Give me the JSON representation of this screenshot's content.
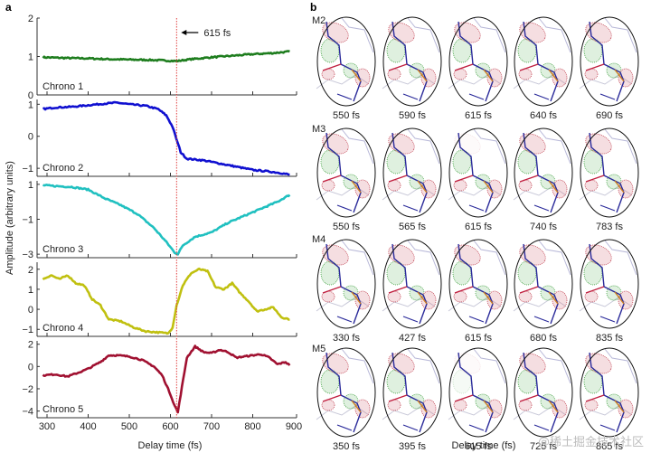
{
  "chart_data": [
    {
      "type": "line",
      "panel_label": "a",
      "xlabel": "Delay time (fs)",
      "ylabel": "Amplitude (arbitrary units)",
      "xlim": [
        280,
        900
      ],
      "xticks": [
        300,
        400,
        500,
        600,
        700,
        800,
        900
      ],
      "annotation": {
        "text": "615 fs",
        "x": 615,
        "style": "red-dotted-vertical-line-with-arrow"
      },
      "panels": [
        {
          "name": "Chrono 1",
          "color": "#1e7d1e",
          "ylim": [
            0,
            2
          ],
          "yticks": [
            0,
            1,
            2
          ],
          "x": [
            290,
            350,
            400,
            450,
            500,
            550,
            600,
            615,
            650,
            700,
            750,
            800,
            850,
            890
          ],
          "y": [
            0.98,
            0.96,
            0.95,
            0.93,
            0.92,
            0.91,
            0.89,
            0.88,
            0.93,
            0.98,
            1.02,
            1.06,
            1.09,
            1.13
          ]
        },
        {
          "name": "Chrono 2",
          "color": "#1010d0",
          "ylim": [
            -1.25,
            1.15
          ],
          "yticks": [
            -1,
            0,
            1
          ],
          "x": [
            290,
            320,
            360,
            400,
            440,
            470,
            500,
            540,
            570,
            590,
            605,
            615,
            625,
            640,
            680,
            720,
            760,
            800,
            840,
            870,
            890
          ],
          "y": [
            0.85,
            0.9,
            0.92,
            0.97,
            1.02,
            1.05,
            1.0,
            0.95,
            0.85,
            0.65,
            0.3,
            -0.1,
            -0.5,
            -0.7,
            -0.75,
            -0.85,
            -0.95,
            -1.05,
            -1.1,
            -1.15,
            -1.2
          ]
        },
        {
          "name": "Chrono 3",
          "color": "#20c0c0",
          "ylim": [
            -3.2,
            1.2
          ],
          "yticks": [
            -3,
            -1,
            1
          ],
          "x": [
            290,
            320,
            360,
            400,
            440,
            480,
            520,
            560,
            590,
            610,
            618,
            630,
            660,
            700,
            740,
            780,
            820,
            860,
            890
          ],
          "y": [
            0.95,
            0.9,
            0.85,
            0.7,
            0.2,
            -0.2,
            -0.7,
            -1.5,
            -2.3,
            -2.9,
            -3.0,
            -2.5,
            -2.0,
            -1.75,
            -1.2,
            -0.8,
            -0.4,
            0.0,
            0.4
          ]
        },
        {
          "name": "Chrono 4",
          "color": "#c0c010",
          "ylim": [
            -1.35,
            2.35
          ],
          "yticks": [
            -1,
            0,
            1,
            2
          ],
          "x": [
            290,
            310,
            330,
            350,
            370,
            390,
            410,
            430,
            450,
            480,
            510,
            540,
            570,
            595,
            605,
            615,
            630,
            650,
            670,
            690,
            710,
            730,
            750,
            770,
            790,
            810,
            830,
            850,
            870,
            890
          ],
          "y": [
            1.5,
            1.7,
            1.5,
            1.7,
            1.3,
            1.2,
            0.5,
            0.2,
            -0.5,
            -0.6,
            -0.9,
            -1.1,
            -1.15,
            -1.2,
            -0.9,
            0.2,
            1.2,
            1.8,
            2.0,
            1.9,
            1.1,
            1.0,
            1.3,
            0.8,
            0.4,
            -0.1,
            0.0,
            0.1,
            -0.4,
            -0.5
          ]
        },
        {
          "name": "Chrono 5",
          "color": "#a01030",
          "ylim": [
            -4.6,
            2.3
          ],
          "yticks": [
            -4,
            -2,
            0,
            2
          ],
          "x": [
            290,
            320,
            350,
            380,
            400,
            430,
            450,
            470,
            500,
            530,
            560,
            580,
            600,
            610,
            618,
            625,
            640,
            660,
            680,
            700,
            720,
            740,
            760,
            780,
            800,
            820,
            840,
            860,
            880,
            890
          ],
          "y": [
            -0.8,
            -0.7,
            -0.9,
            -0.5,
            -0.2,
            0.4,
            1.0,
            1.0,
            0.9,
            0.6,
            0.0,
            -0.8,
            -2.5,
            -3.5,
            -4.1,
            -2.5,
            0.8,
            1.8,
            1.3,
            1.2,
            1.5,
            1.3,
            0.8,
            0.9,
            1.0,
            1.1,
            0.8,
            0.2,
            0.4,
            0.1
          ]
        }
      ]
    },
    {
      "type": "table",
      "panel_label": "b",
      "xlabel": "Delay time (fs)",
      "description": "Grid of electron density difference map snapshots (red negative / green positive mesh) with stick models",
      "rows": [
        {
          "label": "M2",
          "times": [
            "550 fs",
            "590 fs",
            "615 fs",
            "640 fs",
            "690 fs"
          ]
        },
        {
          "label": "M3",
          "times": [
            "550 fs",
            "565 fs",
            "615 fs",
            "740 fs",
            "783 fs"
          ]
        },
        {
          "label": "M4",
          "times": [
            "330 fs",
            "427 fs",
            "615 fs",
            "680 fs",
            "835 fs"
          ]
        },
        {
          "label": "M5",
          "times": [
            "350 fs",
            "395 fs",
            "615 fs",
            "725 fs",
            "865 fs"
          ]
        }
      ]
    }
  ],
  "colors": {
    "marker_line": "#e04040",
    "axis": "#333333",
    "mesh_red": "#c04050",
    "mesh_green": "#40a040",
    "stick_blue": "#2a2a9a"
  },
  "watermark": "@稀土掘金技术社区"
}
